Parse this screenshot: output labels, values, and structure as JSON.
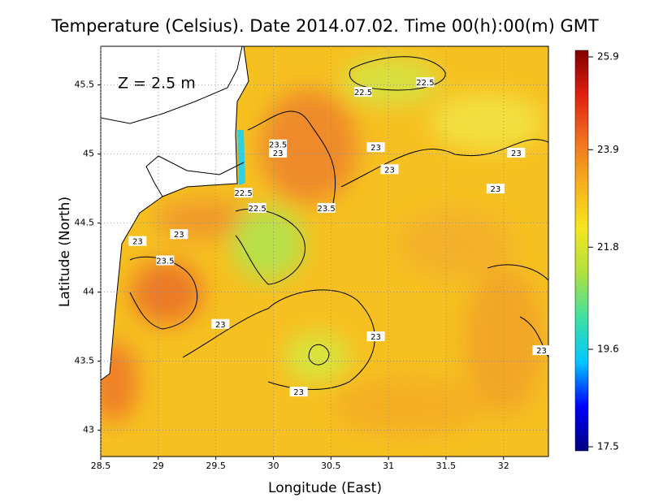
{
  "chart_data": {
    "type": "contour-map",
    "title": "Temperature (Celsius). Date 2014.07.02. Time 00(h):00(m) GMT",
    "annotation": "Z = 2.5 m",
    "x_label": "Longitude (East)",
    "y_label": "Latitude (North)",
    "xlim": [
      28.5,
      32.39
    ],
    "ylim": [
      42.81,
      45.78
    ],
    "xticks": [
      28.5,
      29,
      29.5,
      30,
      30.5,
      31,
      31.5,
      32
    ],
    "yticks": [
      43,
      43.5,
      44,
      44.5,
      45,
      45.5
    ],
    "grid": true,
    "colorbar": {
      "lim": [
        17.5,
        25.9
      ],
      "ticks": [
        17.5,
        19.6,
        21.8,
        23.9,
        25.9
      ],
      "colors": [
        "#00007f",
        "#0000ff",
        "#00c8ff",
        "#40e0a0",
        "#b0e040",
        "#f5e61e",
        "#f5b01e",
        "#f07020",
        "#e02010",
        "#800000"
      ]
    },
    "contour_labels": {
      "x": [
        30.78,
        31.32,
        30.04,
        30.04,
        30.89,
        31.01,
        32.11,
        31.93,
        29.74,
        29.86,
        30.46,
        29.18,
        28.82,
        29.06,
        29.54,
        30.89,
        32.33,
        30.22
      ],
      "y": [
        45.45,
        45.52,
        45.07,
        45.01,
        45.05,
        44.89,
        45.01,
        44.75,
        44.72,
        44.61,
        44.61,
        44.42,
        44.37,
        44.23,
        43.77,
        43.68,
        43.58,
        43.28
      ],
      "values": [
        22.5,
        22.5,
        23.5,
        23,
        23,
        23,
        23,
        23,
        22.5,
        22.5,
        23.5,
        23,
        23,
        23.5,
        23,
        23,
        23,
        23
      ]
    }
  }
}
